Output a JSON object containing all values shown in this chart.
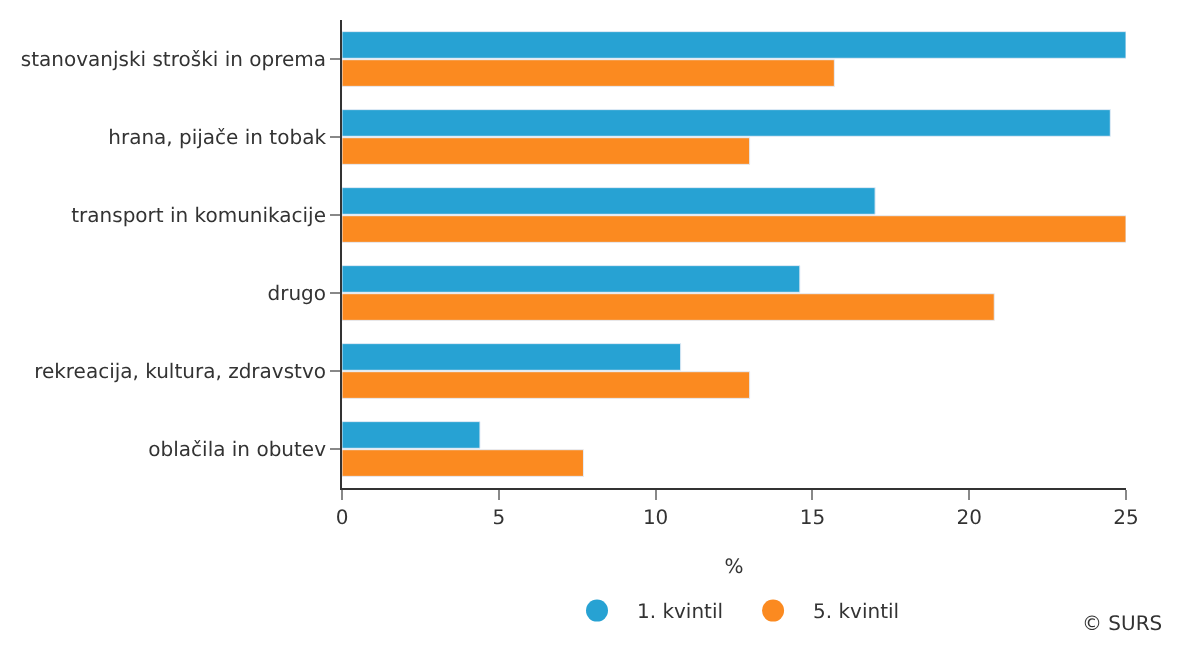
{
  "chart_data": {
    "type": "bar",
    "orientation": "horizontal",
    "xlabel": "%",
    "categories": [
      "stanovanjski stroški in oprema",
      "hrana, pijače in tobak",
      "transport in komunikacije",
      "drugo",
      "rekreacija, kultura, zdravstvo",
      "oblačila in obutev"
    ],
    "series": [
      {
        "name": "1. kvintil",
        "color": "#27a2d3",
        "values": [
          25,
          24.5,
          17.0,
          14.6,
          10.8,
          4.4
        ]
      },
      {
        "name": "5. kvintil",
        "color": "#fb8a20",
        "values": [
          15.7,
          13.0,
          25,
          20.8,
          13.0,
          7.7
        ]
      }
    ],
    "xlim": [
      0,
      25
    ],
    "xticks": [
      0,
      5,
      10,
      15,
      20,
      25
    ],
    "legend": "bottom",
    "annotations": [
      "© SURS"
    ]
  }
}
